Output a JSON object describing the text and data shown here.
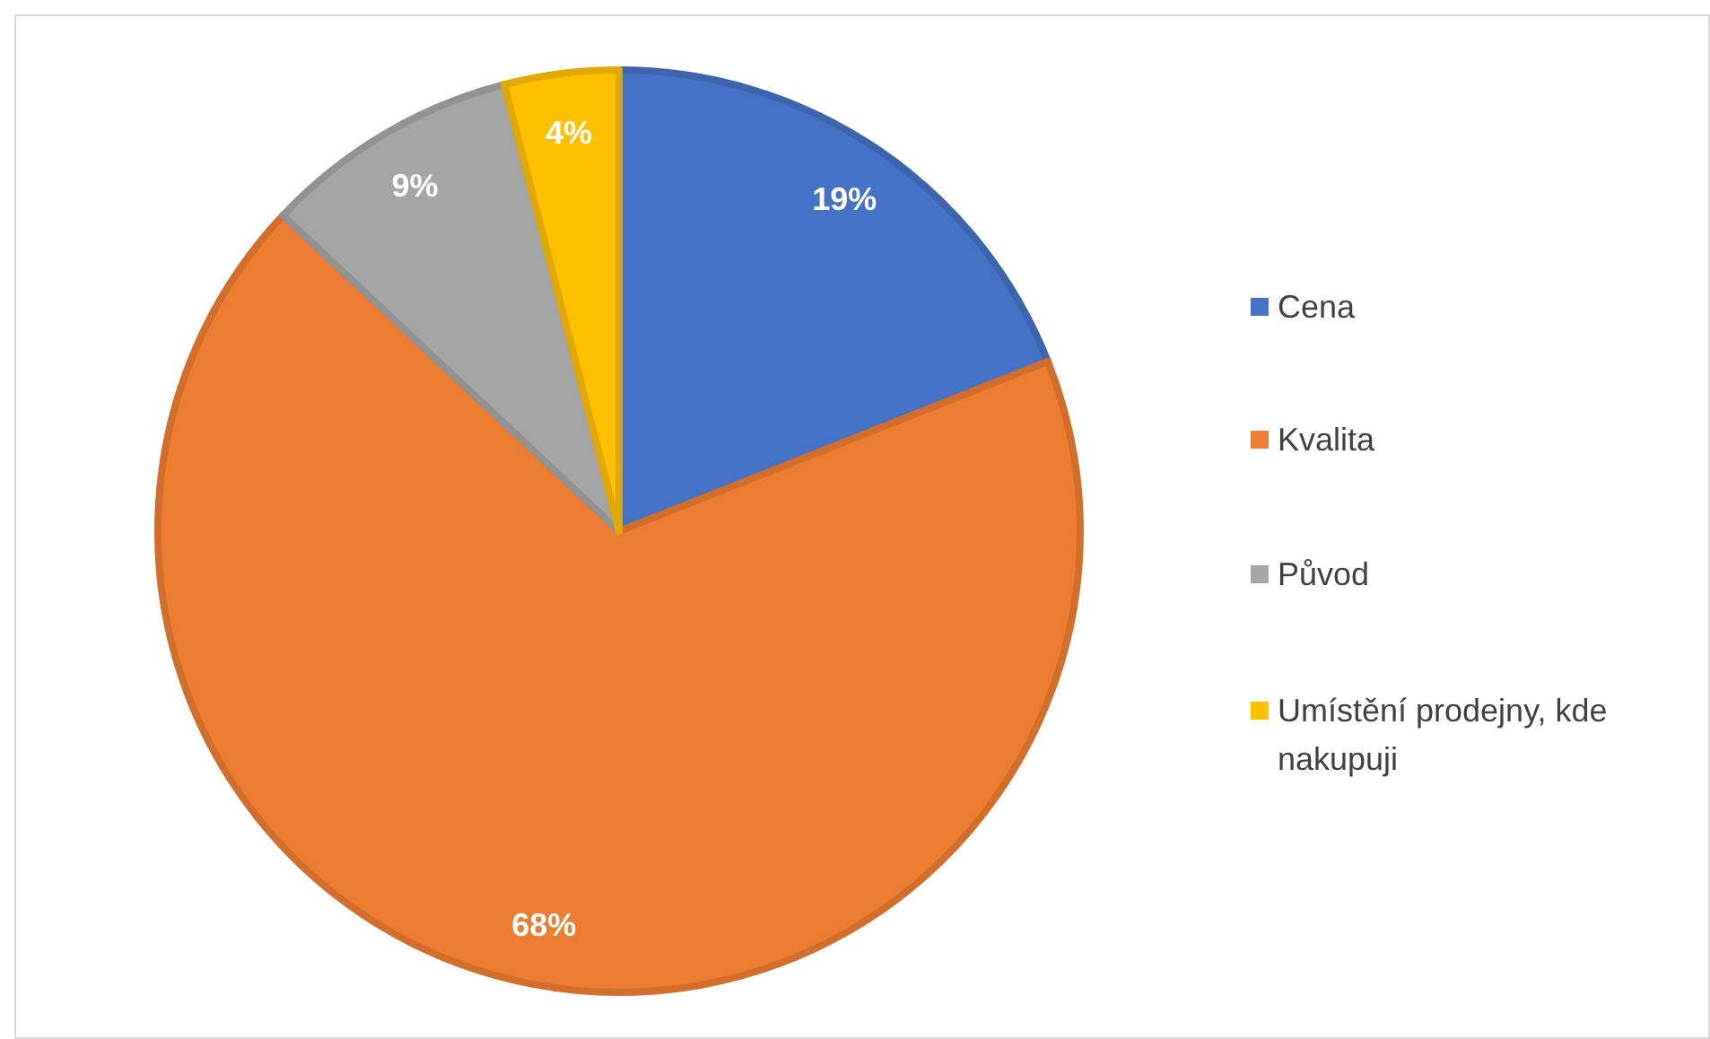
{
  "chart_data": {
    "type": "pie",
    "categories": [
      "Cena",
      "Kvalita",
      "Původ",
      "Umístění prodejny, kde nakupuji"
    ],
    "values": [
      19,
      68,
      9,
      4
    ],
    "colors": [
      "#4472c4",
      "#ed7d31",
      "#a5a5a5",
      "#ffc000"
    ],
    "value_labels": [
      "19%",
      "68%",
      "9%",
      "4%"
    ],
    "legend": "right"
  }
}
